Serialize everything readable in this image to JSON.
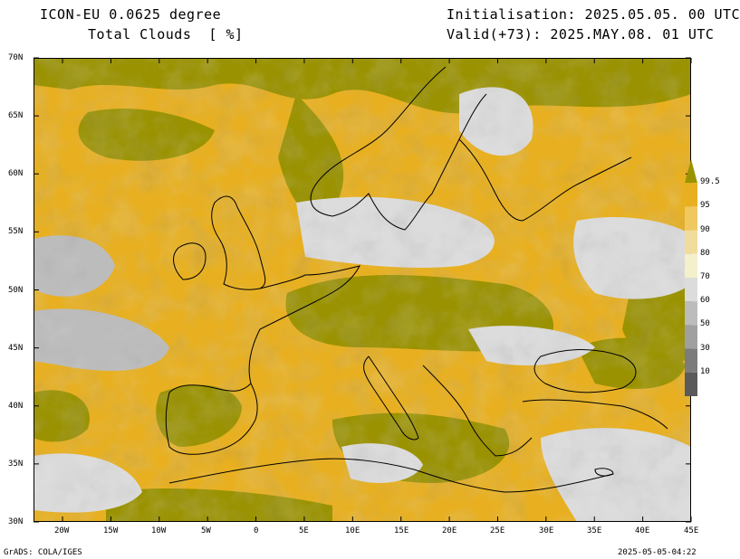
{
  "header": {
    "model_title": "ICON-EU 0.0625 degree",
    "field_title": "Total Clouds  [ %]",
    "init_label": "Initialisation: 2025.05.05. 00 UTC",
    "valid_label": "Valid(+73): 2025.MAY.08. 01 UTC"
  },
  "map": {
    "lat_labels": [
      "70N",
      "65N",
      "60N",
      "55N",
      "50N",
      "45N",
      "40N",
      "35N",
      "30N"
    ],
    "lon_labels": [
      "20W",
      "15W",
      "10W",
      "5W",
      "0",
      "5E",
      "10E",
      "15E",
      "20E",
      "25E",
      "30E",
      "35E",
      "40E",
      "45E"
    ],
    "lat_range": [
      30,
      70
    ],
    "lon_range": [
      -23,
      45
    ]
  },
  "legend": {
    "levels": [
      "99.5",
      "95",
      "90",
      "80",
      "70",
      "60",
      "50",
      "30",
      "10"
    ],
    "colors": [
      "#9a9200",
      "#e8b020",
      "#f0c860",
      "#f0dc9c",
      "#f4f0cc",
      "#dcdcdc",
      "#bcbcbc",
      "#a0a0a0",
      "#7c7c7c",
      "#5a5a5a"
    ]
  },
  "footer": {
    "credit": "GrADS: COLA/IGES",
    "timestamp": "2025-05-05-04:22"
  }
}
